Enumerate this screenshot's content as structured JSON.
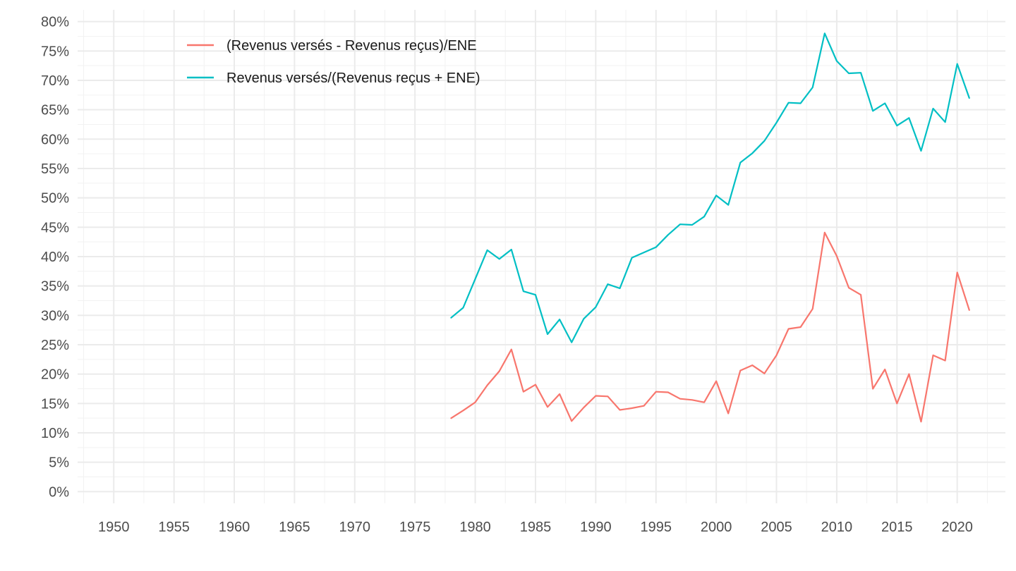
{
  "chart_data": {
    "type": "line",
    "title": "",
    "xlabel": "",
    "ylabel": "",
    "xlim": [
      1947,
      2024
    ],
    "ylim": [
      -2,
      82
    ],
    "x_ticks": [
      1950,
      1955,
      1960,
      1965,
      1970,
      1975,
      1980,
      1985,
      1990,
      1995,
      2000,
      2005,
      2010,
      2015,
      2020
    ],
    "x_tick_labels": [
      "1950",
      "1955",
      "1960",
      "1965",
      "1970",
      "1975",
      "1980",
      "1985",
      "1990",
      "1995",
      "2000",
      "2005",
      "2010",
      "2015",
      "2020"
    ],
    "y_ticks": [
      0,
      5,
      10,
      15,
      20,
      25,
      30,
      35,
      40,
      45,
      50,
      55,
      60,
      65,
      70,
      75,
      80
    ],
    "y_tick_labels": [
      "0%",
      "5%",
      "10%",
      "15%",
      "20%",
      "25%",
      "30%",
      "35%",
      "40%",
      "45%",
      "50%",
      "55%",
      "60%",
      "65%",
      "70%",
      "75%",
      "80%"
    ],
    "grid": true,
    "legend_position": "top-left",
    "x": [
      1978,
      1979,
      1980,
      1981,
      1982,
      1983,
      1984,
      1985,
      1986,
      1987,
      1988,
      1989,
      1990,
      1991,
      1992,
      1993,
      1994,
      1995,
      1996,
      1997,
      1998,
      1999,
      2000,
      2001,
      2002,
      2003,
      2004,
      2005,
      2006,
      2007,
      2008,
      2009,
      2010,
      2011,
      2012,
      2013,
      2014,
      2015,
      2016,
      2017,
      2018,
      2019,
      2020,
      2021
    ],
    "series": [
      {
        "name": "(Revenus versés - Revenus reçus)/ENE",
        "color": "#f8766d",
        "values": [
          12.5,
          13.8,
          15.2,
          18.1,
          20.5,
          24.2,
          17.0,
          18.2,
          14.4,
          16.6,
          12.0,
          14.3,
          16.3,
          16.2,
          13.9,
          14.2,
          14.6,
          17.0,
          16.9,
          15.8,
          15.6,
          15.2,
          18.8,
          13.3,
          20.6,
          21.5,
          20.1,
          23.2,
          27.7,
          28.0,
          31.1,
          44.1,
          40.1,
          34.7,
          33.5,
          17.5,
          20.8,
          15.0,
          20.0,
          11.9,
          23.2,
          22.3,
          37.3,
          30.9
        ]
      },
      {
        "name": "Revenus versés/(Revenus reçus + ENE)",
        "color": "#00bfc4",
        "values": [
          29.6,
          31.3,
          36.2,
          41.1,
          39.6,
          41.2,
          34.1,
          33.5,
          26.8,
          29.3,
          25.4,
          29.4,
          31.4,
          35.3,
          34.6,
          39.8,
          40.7,
          41.6,
          43.7,
          45.5,
          45.4,
          46.8,
          50.4,
          48.8,
          56.0,
          57.6,
          59.7,
          62.8,
          66.2,
          66.1,
          68.8,
          78.0,
          73.3,
          71.2,
          71.3,
          64.8,
          66.1,
          62.3,
          63.6,
          58.0,
          65.2,
          62.9,
          72.8,
          67.0
        ]
      }
    ]
  }
}
